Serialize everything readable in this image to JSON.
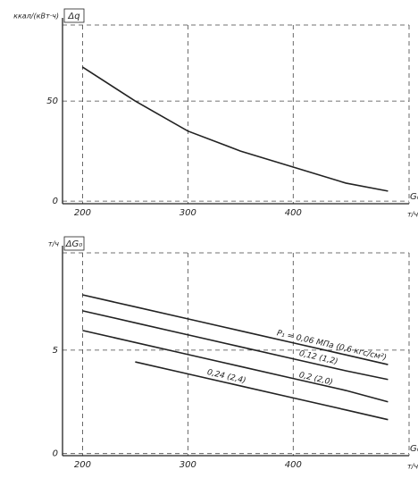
{
  "chart_data": [
    {
      "type": "line",
      "y_unit_label": "ккал/(кВт·ч)",
      "y_label": "Δq",
      "x_label": "G₀",
      "x_unit_label": "т/ч",
      "x": [
        200,
        250,
        300,
        350,
        400,
        450,
        490
      ],
      "values": [
        67,
        50,
        35,
        25,
        17,
        9,
        5
      ],
      "color": "#222",
      "xlim": [
        181,
        510
      ],
      "xticks": [
        200,
        300,
        400
      ],
      "ylim": [
        -1.3,
        88
      ],
      "yticks": [
        0,
        50
      ],
      "grid": true
    },
    {
      "type": "line",
      "y_unit_label": "т/ч",
      "y_label": "ΔG₀",
      "x_label": "G₀",
      "x_unit_label": "т/ч",
      "x": [
        200,
        250,
        300,
        350,
        400,
        450,
        490
      ],
      "series": [
        {
          "name": "P₁ = 0,06 МПа (0,6 кгс/см²)",
          "color": "#222",
          "values": [
            7.67,
            7.09,
            6.51,
            5.93,
            5.35,
            4.77,
            4.3
          ]
        },
        {
          "name": "0,12 (1,2)",
          "color": "#222",
          "values": [
            6.9,
            6.32,
            5.74,
            5.16,
            4.58,
            4.0,
            3.58
          ]
        },
        {
          "name": "0,2 (2,0)",
          "color": "#222",
          "values": [
            5.95,
            5.37,
            4.79,
            4.21,
            3.63,
            3.05,
            2.5
          ]
        },
        {
          "name": "0,24 (2,4)",
          "color": "#222",
          "values": [
            null,
            4.43,
            3.85,
            3.27,
            2.69,
            2.11,
            1.64
          ]
        }
      ],
      "xlim": [
        181,
        510
      ],
      "xticks": [
        200,
        300,
        400
      ],
      "ylim": [
        -0.1,
        9.7
      ],
      "yticks": [
        0,
        5
      ],
      "grid": true
    }
  ]
}
